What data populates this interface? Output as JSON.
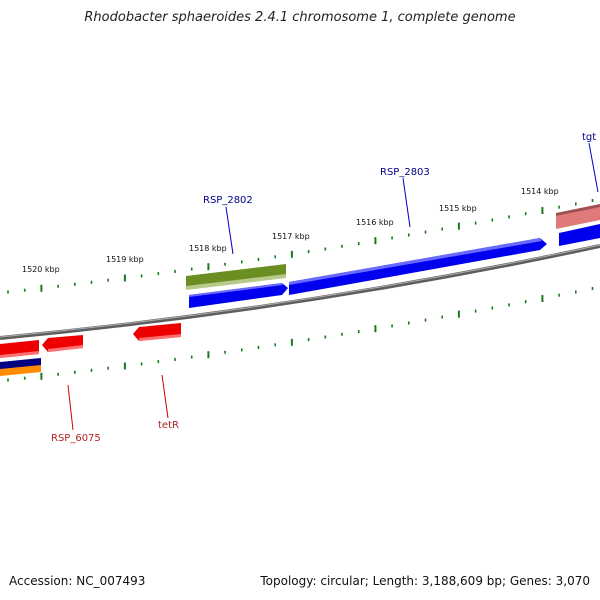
{
  "title": "Rhodobacter sphaeroides 2.4.1 chromosome 1, complete genome",
  "footer": {
    "accession": "Accession: NC_007493",
    "summary": "Topology: circular; Length: 3,188,609 bp; Genes: 3,070"
  },
  "scale_labels": [
    "1520 kbp",
    "1519 kbp",
    "1518 kbp",
    "1517 kbp",
    "1516 kbp",
    "1515 kbp",
    "1514 kbp"
  ],
  "gene_labels": {
    "rsp_2802": "RSP_2802",
    "rsp_2803": "RSP_2803",
    "tgt": "tgt",
    "rsp_6075": "RSP_6075",
    "tetr": "tetR"
  },
  "colors": {
    "backbone": "#808080",
    "tick": "#1a7a1a",
    "forward_gene": "#0000ee",
    "reverse_gene": "#ee0000",
    "olive_gene": "#6b8e23",
    "pink_gene": "#e07a7a",
    "orange_gene": "#ff8c00",
    "navy_gene": "#000080",
    "label_blue": "#00008b",
    "label_red": "#b22222"
  }
}
